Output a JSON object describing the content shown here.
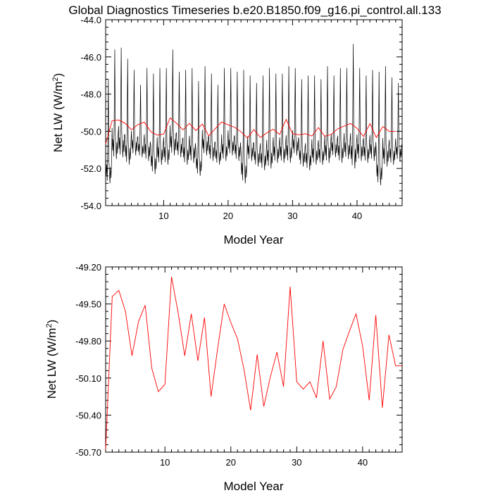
{
  "colors": {
    "monthly": "#000000",
    "annual": "#ff0000",
    "frame": "#000000"
  },
  "chart_data": [
    {
      "type": "line",
      "title": "Global Diagnostics Timeseries b.e20.B1850.f09_g16.pi_control.all.133",
      "xlabel": "Model Year",
      "ylabel": "Net LW (W/m²)",
      "ylabel_base": "Net LW (W/m",
      "ylabel_sup": "2",
      "ylabel_close": ")",
      "xlim": [
        1,
        47
      ],
      "ylim": [
        -54.0,
        -44.0
      ],
      "xticks": [
        10,
        20,
        30,
        40
      ],
      "xtick_labels": [
        "10",
        "20",
        "30",
        "40"
      ],
      "yticks": [
        -54.0,
        -52.0,
        -50.0,
        -48.0,
        -46.0,
        -44.0
      ],
      "ytick_labels": [
        "-54.0",
        "-52.0",
        "-50.0",
        "-48.0",
        "-46.0",
        "-44.0"
      ],
      "series": [
        {
          "style": "monthly",
          "x_start": 1,
          "x_step": 0.0833333,
          "monthly_peaks": [
            -47.2,
            -45.6,
            -45.5,
            -46.1,
            -46.7,
            -47.5,
            -46.6,
            -46.9,
            -46.6,
            -46.6,
            -45.6,
            -46.8,
            -46.7,
            -46.6,
            -47.3,
            -46.5,
            -46.9,
            -47.5,
            -46.6,
            -46.6,
            -46.8,
            -46.7,
            -47.0,
            -47.4,
            -47.0,
            -46.6,
            -46.9,
            -46.9,
            -46.5,
            -46.6,
            -47.2,
            -47.0,
            -47.0,
            -47.2,
            -46.5,
            -47.0,
            -46.6,
            -46.6,
            -45.3,
            -46.6,
            -47.0,
            -46.7,
            -46.8,
            -46.5,
            -47.1,
            -47.4
          ],
          "monthly_troughs": [
            -52.8,
            -51.5,
            -51.4,
            -51.8,
            -51.3,
            -51.4,
            -51.6,
            -52.3,
            -51.8,
            -51.8,
            -51.3,
            -51.4,
            -51.8,
            -51.7,
            -52.4,
            -51.3,
            -51.6,
            -51.8,
            -51.6,
            -51.3,
            -51.6,
            -52.8,
            -51.6,
            -51.9,
            -52.1,
            -52.0,
            -51.7,
            -51.7,
            -51.7,
            -51.3,
            -51.9,
            -52.1,
            -51.8,
            -51.8,
            -51.7,
            -51.4,
            -51.7,
            -51.5,
            -52.0,
            -51.6,
            -51.7,
            -51.6,
            -52.9,
            -51.9,
            -51.8,
            -51.6
          ]
        },
        {
          "style": "annual",
          "x": [
            1,
            2,
            3,
            4,
            5,
            6,
            7,
            8,
            9,
            10,
            11,
            12,
            13,
            14,
            15,
            16,
            17,
            18,
            19,
            20,
            21,
            22,
            23,
            24,
            25,
            26,
            27,
            28,
            29,
            30,
            31,
            32,
            33,
            34,
            35,
            36,
            37,
            38,
            39,
            40,
            41,
            42,
            43,
            44,
            45,
            46
          ],
          "values": [
            -50.68,
            -49.44,
            -49.39,
            -49.56,
            -49.92,
            -49.64,
            -49.51,
            -50.02,
            -50.21,
            -50.15,
            -49.28,
            -49.57,
            -49.92,
            -49.58,
            -49.96,
            -49.61,
            -50.25,
            -49.86,
            -49.5,
            -49.65,
            -49.78,
            -50.03,
            -50.36,
            -49.91,
            -50.33,
            -50.09,
            -49.89,
            -50.17,
            -49.36,
            -50.13,
            -50.19,
            -50.13,
            -50.26,
            -49.8,
            -50.27,
            -50.17,
            -49.87,
            -49.72,
            -49.58,
            -49.84,
            -50.28,
            -49.59,
            -50.34,
            -49.75,
            -50.0,
            -50.0
          ]
        }
      ]
    },
    {
      "type": "line",
      "title": "",
      "xlabel": "Model Year",
      "ylabel": "Net LW (W/m²)",
      "ylabel_base": "Net LW (W/m",
      "ylabel_sup": "2",
      "ylabel_close": ")",
      "xlim": [
        1,
        46
      ],
      "ylim": [
        -50.7,
        -49.2
      ],
      "xticks": [
        10,
        20,
        30,
        40
      ],
      "xtick_labels": [
        "10",
        "20",
        "30",
        "40"
      ],
      "yticks": [
        -50.7,
        -50.4,
        -50.1,
        -49.8,
        -49.5,
        -49.2
      ],
      "ytick_labels": [
        "-50.70",
        "-50.40",
        "-50.10",
        "-49.80",
        "-49.50",
        "-49.20"
      ],
      "series": [
        {
          "style": "annual",
          "x": [
            1,
            2,
            3,
            4,
            5,
            6,
            7,
            8,
            9,
            10,
            11,
            12,
            13,
            14,
            15,
            16,
            17,
            18,
            19,
            20,
            21,
            22,
            23,
            24,
            25,
            26,
            27,
            28,
            29,
            30,
            31,
            32,
            33,
            34,
            35,
            36,
            37,
            38,
            39,
            40,
            41,
            42,
            43,
            44,
            45,
            46
          ],
          "values": [
            -50.68,
            -49.44,
            -49.39,
            -49.56,
            -49.92,
            -49.64,
            -49.51,
            -50.02,
            -50.21,
            -50.15,
            -49.28,
            -49.57,
            -49.92,
            -49.58,
            -49.96,
            -49.61,
            -50.25,
            -49.86,
            -49.5,
            -49.65,
            -49.78,
            -50.03,
            -50.36,
            -49.91,
            -50.33,
            -50.09,
            -49.89,
            -50.17,
            -49.36,
            -50.13,
            -50.19,
            -50.13,
            -50.26,
            -49.8,
            -50.27,
            -50.17,
            -49.87,
            -49.72,
            -49.58,
            -49.84,
            -50.28,
            -49.59,
            -50.34,
            -49.75,
            -50.0,
            -50.0
          ]
        }
      ]
    }
  ]
}
